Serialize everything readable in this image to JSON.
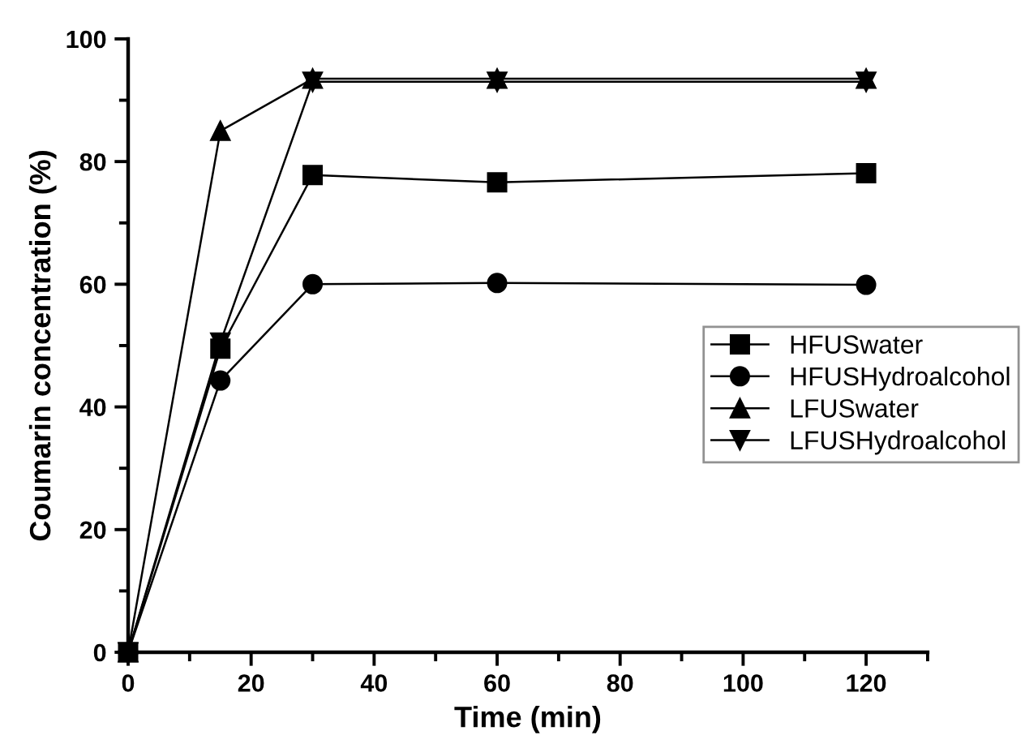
{
  "chart_data": {
    "type": "line",
    "xlabel": "Time (min)",
    "ylabel": "Coumarin concentration (%)",
    "x": [
      0,
      15,
      30,
      60,
      120
    ],
    "series": [
      {
        "name": "HFUSwater",
        "color": "#000000",
        "marker": "square",
        "values": [
          0,
          49.5,
          77.8,
          76.6,
          78.1
        ]
      },
      {
        "name": "HFUSHydroalcohol",
        "color": "#000000",
        "marker": "circle",
        "values": [
          0,
          44.3,
          60.0,
          60.2,
          59.9
        ]
      },
      {
        "name": "LFUSwater",
        "color": "#000000",
        "marker": "triangle",
        "values": [
          0,
          85,
          93.5,
          93.5,
          93.5
        ]
      },
      {
        "name": "LFUSHydroalcohol",
        "color": "#000000",
        "marker": "triangle_down",
        "values": [
          0,
          50.5,
          93,
          93,
          93
        ]
      }
    ],
    "xlim": [
      0,
      130
    ],
    "xticks": [
      0,
      20,
      40,
      60,
      80,
      100,
      120
    ],
    "ylim": [
      0,
      100
    ],
    "yticks": [
      0,
      20,
      40,
      60,
      80,
      100
    ],
    "grid": false,
    "legend": "right",
    "line_style": "solid"
  }
}
